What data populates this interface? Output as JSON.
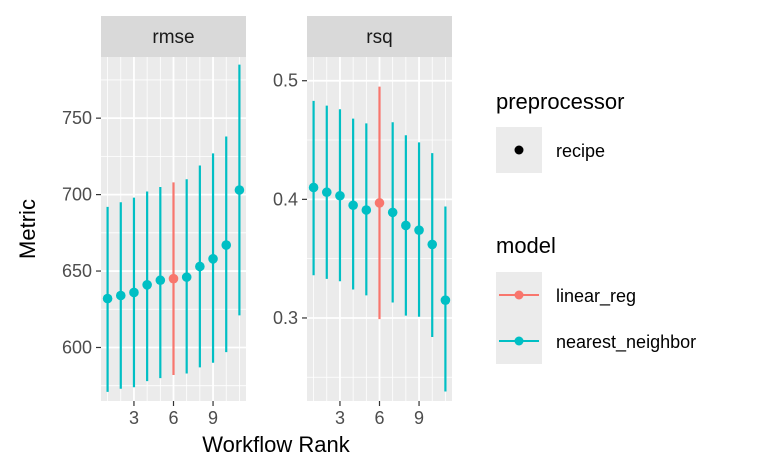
{
  "chart_data": {
    "type": "scatter",
    "kind": "faceted point-range",
    "xlabel": "Workflow Rank",
    "ylabel": "Metric",
    "x_ticks": [
      3,
      6,
      9
    ],
    "xlim": [
      0.5,
      11.5
    ],
    "grid": true,
    "legend_position": "right",
    "colors": {
      "linear_reg": "#F8766D",
      "nearest_neighbor": "#00BFC4"
    },
    "facets": [
      {
        "label": "rmse",
        "ylim": [
          565,
          790
        ],
        "y_ticks": [
          600,
          650,
          700,
          750
        ],
        "points": [
          {
            "rank": 1,
            "model": "nearest_neighbor",
            "mean": 632,
            "lower": 571,
            "upper": 692
          },
          {
            "rank": 2,
            "model": "nearest_neighbor",
            "mean": 634,
            "lower": 573,
            "upper": 695
          },
          {
            "rank": 3,
            "model": "nearest_neighbor",
            "mean": 636,
            "lower": 574,
            "upper": 698
          },
          {
            "rank": 4,
            "model": "nearest_neighbor",
            "mean": 641,
            "lower": 578,
            "upper": 702
          },
          {
            "rank": 5,
            "model": "nearest_neighbor",
            "mean": 644,
            "lower": 580,
            "upper": 705
          },
          {
            "rank": 6,
            "model": "linear_reg",
            "mean": 645,
            "lower": 582,
            "upper": 708
          },
          {
            "rank": 7,
            "model": "nearest_neighbor",
            "mean": 646,
            "lower": 583,
            "upper": 710
          },
          {
            "rank": 8,
            "model": "nearest_neighbor",
            "mean": 653,
            "lower": 587,
            "upper": 719
          },
          {
            "rank": 9,
            "model": "nearest_neighbor",
            "mean": 658,
            "lower": 590,
            "upper": 727
          },
          {
            "rank": 10,
            "model": "nearest_neighbor",
            "mean": 667,
            "lower": 597,
            "upper": 738
          },
          {
            "rank": 11,
            "model": "nearest_neighbor",
            "mean": 703,
            "lower": 621,
            "upper": 785
          }
        ]
      },
      {
        "label": "rsq",
        "ylim": [
          0.23,
          0.52
        ],
        "y_ticks": [
          0.3,
          0.4,
          0.5
        ],
        "points": [
          {
            "rank": 1,
            "model": "nearest_neighbor",
            "mean": 0.41,
            "lower": 0.336,
            "upper": 0.483
          },
          {
            "rank": 2,
            "model": "nearest_neighbor",
            "mean": 0.406,
            "lower": 0.333,
            "upper": 0.479
          },
          {
            "rank": 3,
            "model": "nearest_neighbor",
            "mean": 0.403,
            "lower": 0.331,
            "upper": 0.476
          },
          {
            "rank": 4,
            "model": "nearest_neighbor",
            "mean": 0.395,
            "lower": 0.324,
            "upper": 0.468
          },
          {
            "rank": 5,
            "model": "nearest_neighbor",
            "mean": 0.391,
            "lower": 0.319,
            "upper": 0.464
          },
          {
            "rank": 6,
            "model": "linear_reg",
            "mean": 0.397,
            "lower": 0.299,
            "upper": 0.495
          },
          {
            "rank": 7,
            "model": "nearest_neighbor",
            "mean": 0.389,
            "lower": 0.313,
            "upper": 0.465
          },
          {
            "rank": 8,
            "model": "nearest_neighbor",
            "mean": 0.378,
            "lower": 0.302,
            "upper": 0.454
          },
          {
            "rank": 9,
            "model": "nearest_neighbor",
            "mean": 0.374,
            "lower": 0.301,
            "upper": 0.448
          },
          {
            "rank": 10,
            "model": "nearest_neighbor",
            "mean": 0.362,
            "lower": 0.284,
            "upper": 0.439
          },
          {
            "rank": 11,
            "model": "nearest_neighbor",
            "mean": 0.315,
            "lower": 0.238,
            "upper": 0.394
          }
        ]
      }
    ],
    "legends": [
      {
        "title": "preprocessor",
        "type": "shape",
        "entries": [
          {
            "label": "recipe"
          }
        ]
      },
      {
        "title": "model",
        "type": "color",
        "entries": [
          {
            "label": "linear_reg",
            "key": "linear_reg"
          },
          {
            "label": "nearest_neighbor",
            "key": "nearest_neighbor"
          }
        ]
      }
    ]
  }
}
